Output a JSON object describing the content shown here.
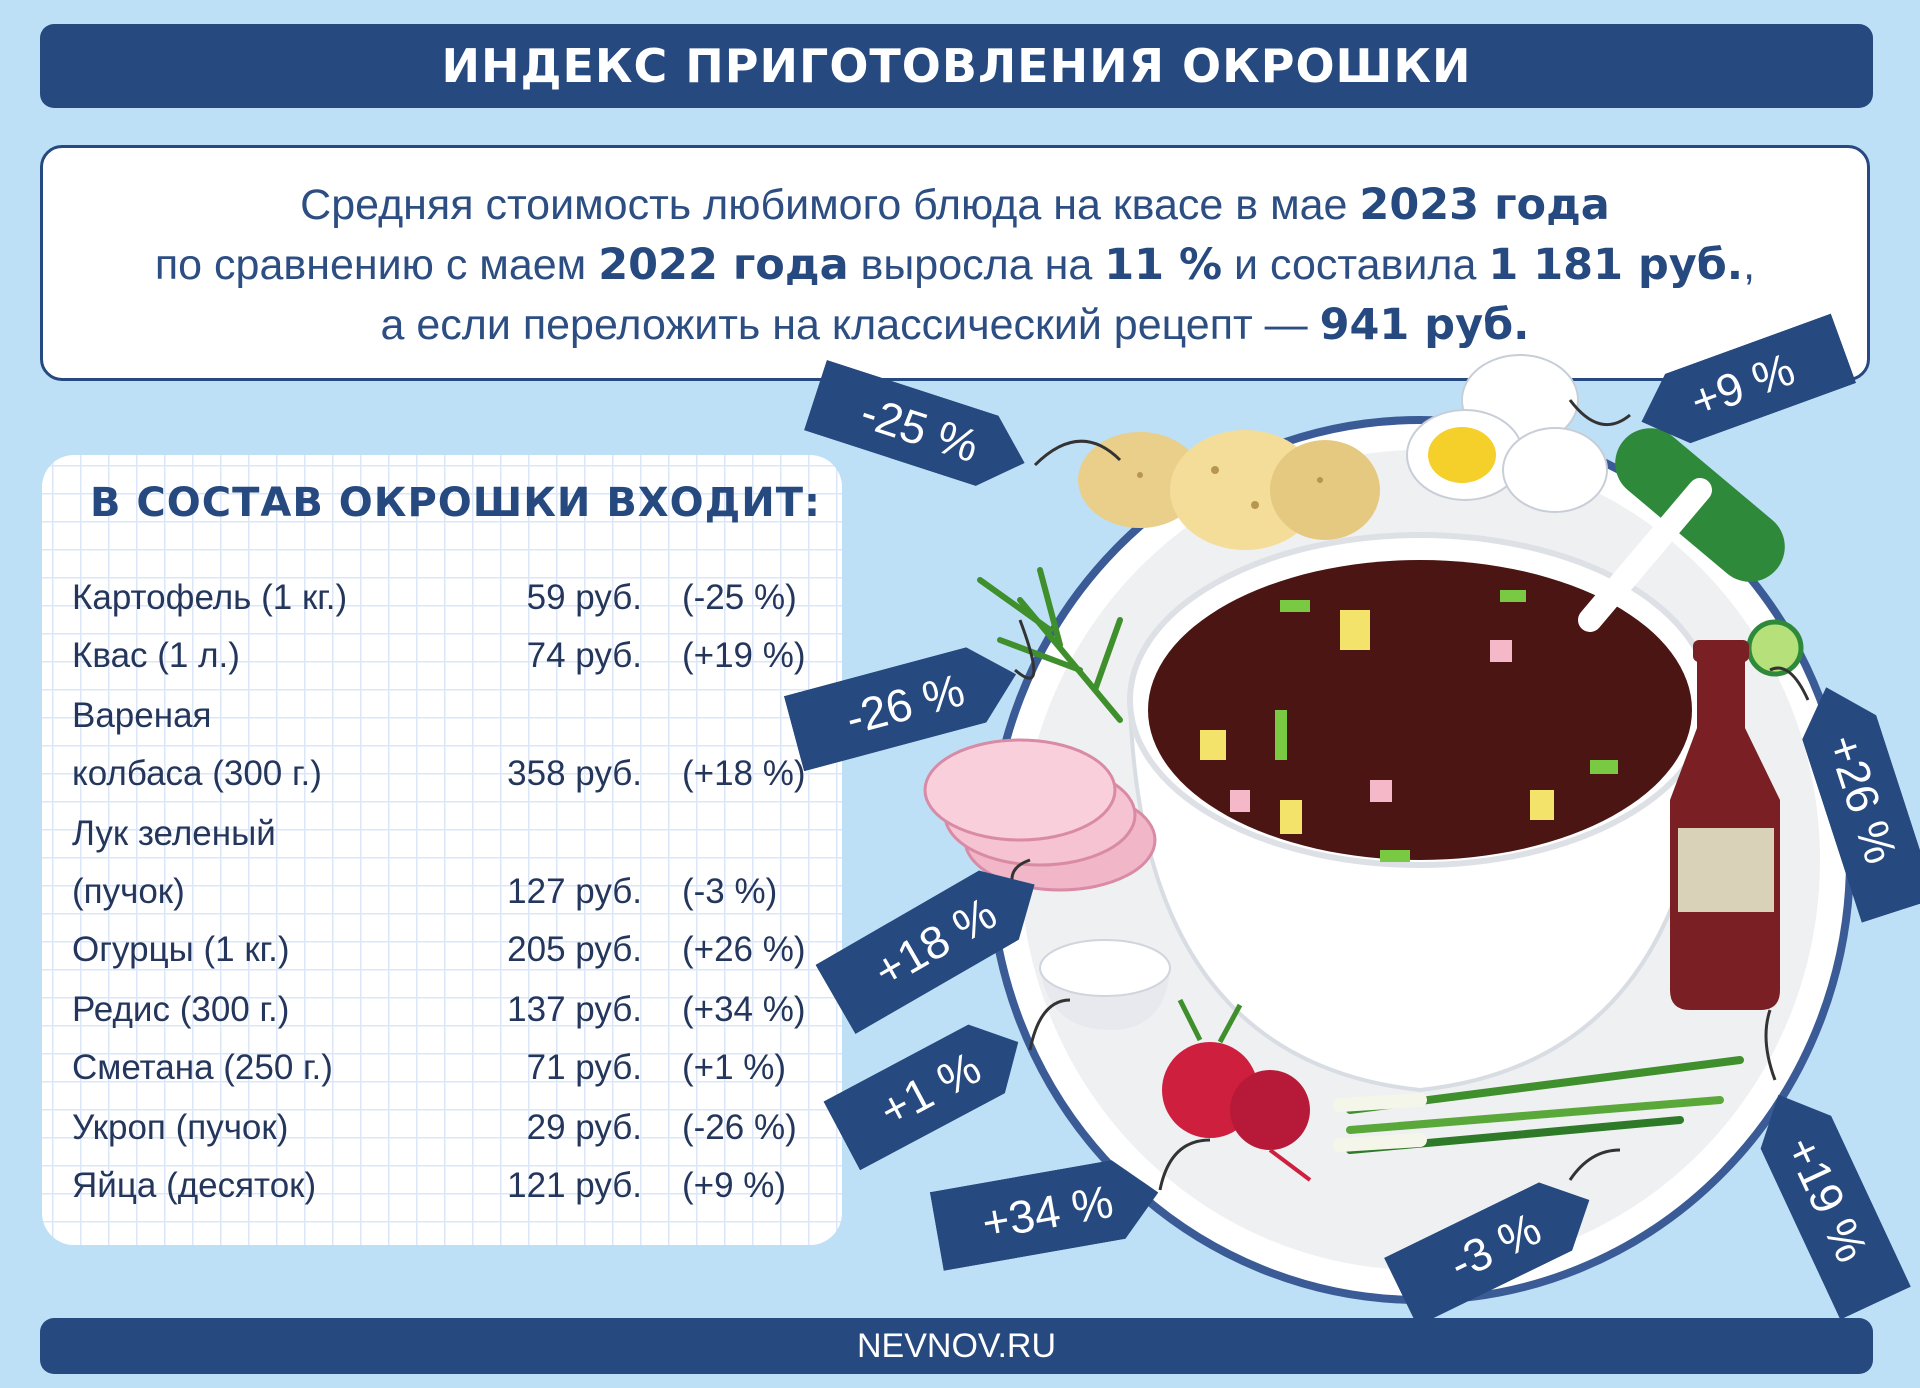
{
  "header": {
    "title": "ИНДЕКС ПРИГОТОВЛЕНИЯ ОКРОШКИ"
  },
  "summary": {
    "line1": {
      "a": "Средняя стоимость любимого блюда на квасе в мае ",
      "b": "2023 года"
    },
    "line2": {
      "a": "по сравнению с маем ",
      "b": "2022 года",
      "c": " выросла на ",
      "d": "11 %",
      "e": " и составила ",
      "f": "1 181 руб.",
      "g": ","
    },
    "line3": {
      "a": "а если переложить на классический рецепт — ",
      "b": "941 руб."
    }
  },
  "ingredients": {
    "title": "В СОСТАВ ОКРОШКИ ВХОДИТ:",
    "rows": [
      {
        "name": "Картофель (1 кг.)",
        "price": "59 руб.",
        "change": "(-25 %)"
      },
      {
        "name": "Квас (1 л.)",
        "price": "74 руб.",
        "change": "(+19 %)"
      },
      {
        "name": "Вареная",
        "price": "",
        "change": ""
      },
      {
        "name": "колбаса (300 г.)",
        "price": "358 руб.",
        "change": "(+18 %)"
      },
      {
        "name": "Лук зеленый",
        "price": "",
        "change": ""
      },
      {
        "name": "(пучок)",
        "price": "127 руб.",
        "change": "(-3 %)"
      },
      {
        "name": "Огурцы (1 кг.)",
        "price": "205 руб.",
        "change": "(+26 %)"
      },
      {
        "name": "Редис (300 г.)",
        "price": "137 руб.",
        "change": "(+34 %)"
      },
      {
        "name": "Сметана (250 г.)",
        "price": "71 руб.",
        "change": "(+1 %)"
      },
      {
        "name": "Укроп (пучок)",
        "price": "29 руб.",
        "change": "(-26 %)"
      },
      {
        "name": "Яйца (десяток)",
        "price": "121 руб.",
        "change": "(+9 %)"
      }
    ]
  },
  "tags": {
    "potato": "-25 %",
    "eggs": "+9 %",
    "dill": "-26 %",
    "cucumber": "+26 %",
    "sausage": "+18 %",
    "sour_cream": "+1 %",
    "kvass": "+19 %",
    "radish": "+34 %",
    "onion": "-3 %"
  },
  "footer": {
    "site": "NEVNOV.RU"
  },
  "colors": {
    "navy": "#26497f",
    "background": "#bde0f7",
    "soup": "#4a1512",
    "card": "#ffffff"
  }
}
